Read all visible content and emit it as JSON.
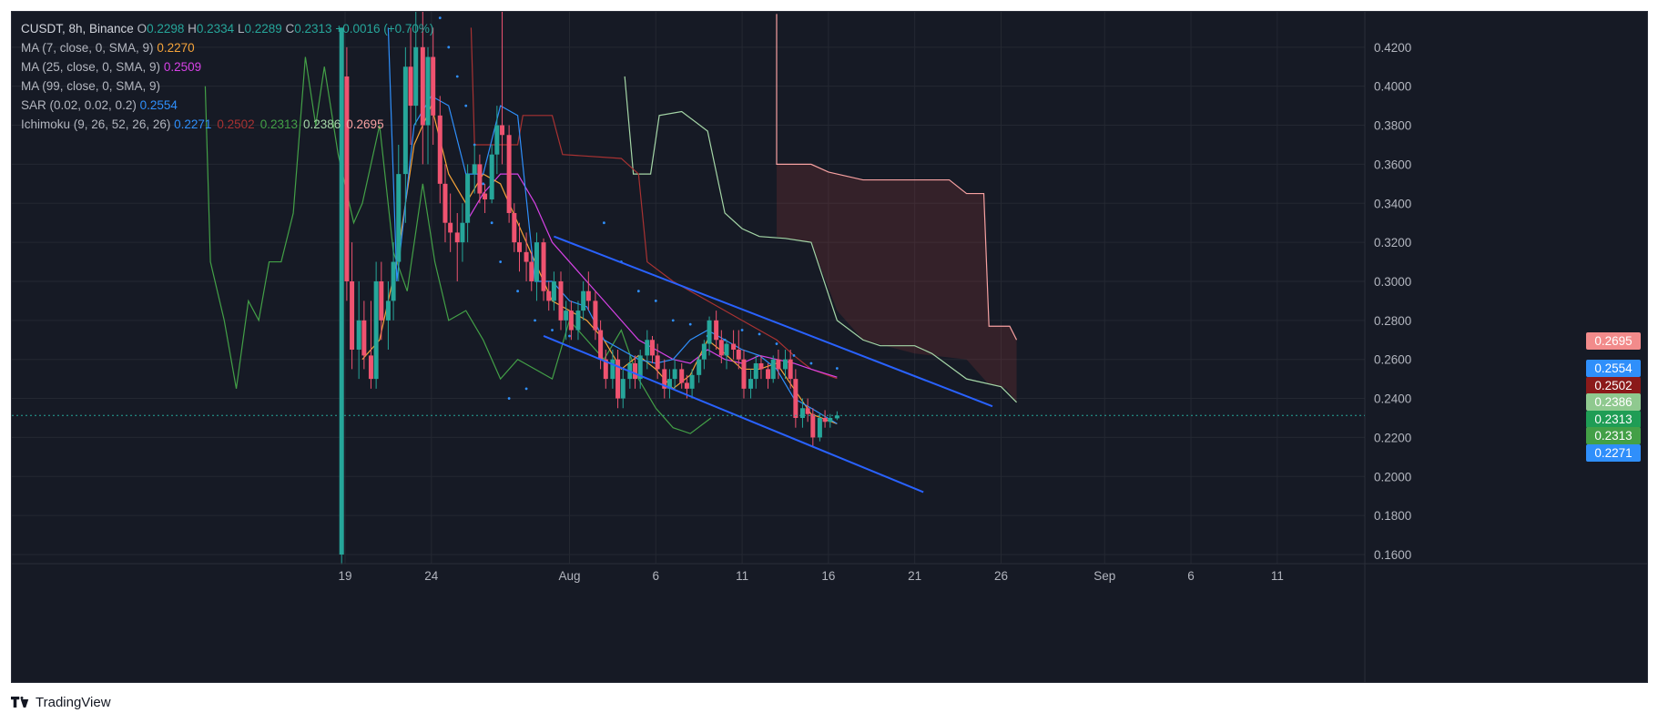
{
  "legend": {
    "symbol": "CUSDT, 8h, Binance",
    "ohlc": [
      {
        "k": "O",
        "v": "0.2298"
      },
      {
        "k": "H",
        "v": "0.2334"
      },
      {
        "k": "L",
        "v": "0.2289"
      },
      {
        "k": "C",
        "v": "0.2313"
      }
    ],
    "change": "+0.0016 (+0.70%)",
    "indicators": [
      {
        "label": "MA (7, close, 0, SMA, 9)",
        "values": [
          {
            "v": "0.2270",
            "color": "#f5a33a"
          }
        ]
      },
      {
        "label": "MA (25, close, 0, SMA, 9)",
        "values": [
          {
            "v": "0.2509",
            "color": "#d742e6"
          }
        ]
      },
      {
        "label": "MA (99, close, 0, SMA, 9)",
        "values": []
      },
      {
        "label": "SAR (0.02, 0.02, 0.2)",
        "values": [
          {
            "v": "0.2554",
            "color": "#2f8ffb"
          }
        ]
      },
      {
        "label": "Ichimoku (9, 26, 52, 26, 26)",
        "values": [
          {
            "v": "0.2271",
            "color": "#2f8ffb"
          },
          {
            "v": "0.2502",
            "color": "#a83232"
          },
          {
            "v": "0.2313",
            "color": "#43a047"
          },
          {
            "v": "0.2386",
            "color": "#a5d6a7"
          },
          {
            "v": "0.2695",
            "color": "#f7a1a1"
          }
        ]
      }
    ]
  },
  "price_tags": [
    {
      "v": "0.2695",
      "color": "#f28b8b",
      "price": 0.2695
    },
    {
      "v": "0.2554",
      "color": "#2f8ffb",
      "price": 0.2554
    },
    {
      "v": "0.2502",
      "color": "#8b1a1a",
      "price": 0.2502
    },
    {
      "v": "0.2386",
      "color": "#8fc98f",
      "price": 0.2386
    },
    {
      "v": "0.2313",
      "color": "#1f9d55",
      "price": 0.2313
    },
    {
      "v": "0.2313",
      "color": "#43a047",
      "price": 0.2313
    },
    {
      "v": "0.2271",
      "color": "#2f8ffb",
      "price": 0.2271
    }
  ],
  "footer": {
    "brand": "TradingView"
  },
  "chart_data": {
    "type": "candlestick",
    "title": "CUSDT, 8h, Binance",
    "ylim": [
      0.155,
      0.437
    ],
    "y_ticks": [
      0.16,
      0.18,
      0.2,
      0.22,
      0.24,
      0.26,
      0.28,
      0.3,
      0.32,
      0.34,
      0.36,
      0.38,
      0.4,
      0.42
    ],
    "x_tick_labels": [
      {
        "label": "19",
        "day": 19
      },
      {
        "label": "24",
        "day": 24
      },
      {
        "label": "Aug",
        "day": 32
      },
      {
        "label": "6",
        "day": 37
      },
      {
        "label": "11",
        "day": 42
      },
      {
        "label": "16",
        "day": 47
      },
      {
        "label": "21",
        "day": 52
      },
      {
        "label": "26",
        "day": 57
      },
      {
        "label": "Sep",
        "day": 63
      },
      {
        "label": "6",
        "day": 68
      },
      {
        "label": "11",
        "day": 73
      }
    ],
    "grid": true,
    "current_price": 0.2313,
    "candles": [
      {
        "d": 18.8,
        "o": 0.16,
        "h": 0.43,
        "l": 0.155,
        "c": 0.43
      },
      {
        "d": 19.1,
        "o": 0.405,
        "h": 0.42,
        "l": 0.29,
        "c": 0.3
      },
      {
        "d": 19.4,
        "o": 0.3,
        "h": 0.32,
        "l": 0.255,
        "c": 0.265
      },
      {
        "d": 19.8,
        "o": 0.265,
        "h": 0.3,
        "l": 0.25,
        "c": 0.28
      },
      {
        "d": 20.1,
        "o": 0.28,
        "h": 0.29,
        "l": 0.255,
        "c": 0.262
      },
      {
        "d": 20.5,
        "o": 0.262,
        "h": 0.29,
        "l": 0.245,
        "c": 0.25
      },
      {
        "d": 20.8,
        "o": 0.25,
        "h": 0.31,
        "l": 0.245,
        "c": 0.3
      },
      {
        "d": 21.1,
        "o": 0.3,
        "h": 0.31,
        "l": 0.27,
        "c": 0.28
      },
      {
        "d": 21.5,
        "o": 0.28,
        "h": 0.3,
        "l": 0.265,
        "c": 0.29
      },
      {
        "d": 21.8,
        "o": 0.29,
        "h": 0.32,
        "l": 0.28,
        "c": 0.31
      },
      {
        "d": 22.1,
        "o": 0.31,
        "h": 0.37,
        "l": 0.3,
        "c": 0.355
      },
      {
        "d": 22.5,
        "o": 0.355,
        "h": 0.42,
        "l": 0.33,
        "c": 0.41
      },
      {
        "d": 22.8,
        "o": 0.41,
        "h": 0.43,
        "l": 0.37,
        "c": 0.39
      },
      {
        "d": 23.1,
        "o": 0.39,
        "h": 0.44,
        "l": 0.38,
        "c": 0.42
      },
      {
        "d": 23.5,
        "o": 0.42,
        "h": 0.44,
        "l": 0.36,
        "c": 0.38
      },
      {
        "d": 23.8,
        "o": 0.38,
        "h": 0.42,
        "l": 0.36,
        "c": 0.415
      },
      {
        "d": 24.1,
        "o": 0.415,
        "h": 0.43,
        "l": 0.37,
        "c": 0.385
      },
      {
        "d": 24.5,
        "o": 0.385,
        "h": 0.395,
        "l": 0.34,
        "c": 0.35
      },
      {
        "d": 24.8,
        "o": 0.35,
        "h": 0.36,
        "l": 0.32,
        "c": 0.33
      },
      {
        "d": 25.1,
        "o": 0.33,
        "h": 0.345,
        "l": 0.315,
        "c": 0.325
      },
      {
        "d": 25.5,
        "o": 0.325,
        "h": 0.335,
        "l": 0.3,
        "c": 0.32
      },
      {
        "d": 25.8,
        "o": 0.32,
        "h": 0.34,
        "l": 0.31,
        "c": 0.33
      },
      {
        "d": 26.1,
        "o": 0.33,
        "h": 0.36,
        "l": 0.32,
        "c": 0.355
      },
      {
        "d": 26.5,
        "o": 0.355,
        "h": 0.37,
        "l": 0.345,
        "c": 0.36
      },
      {
        "d": 26.8,
        "o": 0.36,
        "h": 0.365,
        "l": 0.34,
        "c": 0.345
      },
      {
        "d": 27.1,
        "o": 0.345,
        "h": 0.35,
        "l": 0.335,
        "c": 0.342
      },
      {
        "d": 27.5,
        "o": 0.342,
        "h": 0.37,
        "l": 0.34,
        "c": 0.365
      },
      {
        "d": 27.8,
        "o": 0.365,
        "h": 0.39,
        "l": 0.355,
        "c": 0.38
      },
      {
        "d": 28.1,
        "o": 0.38,
        "h": 0.44,
        "l": 0.36,
        "c": 0.375
      },
      {
        "d": 28.5,
        "o": 0.375,
        "h": 0.38,
        "l": 0.33,
        "c": 0.335
      },
      {
        "d": 28.8,
        "o": 0.335,
        "h": 0.34,
        "l": 0.315,
        "c": 0.32
      },
      {
        "d": 29.1,
        "o": 0.32,
        "h": 0.33,
        "l": 0.305,
        "c": 0.315
      },
      {
        "d": 29.5,
        "o": 0.315,
        "h": 0.325,
        "l": 0.3,
        "c": 0.31
      },
      {
        "d": 29.8,
        "o": 0.31,
        "h": 0.315,
        "l": 0.295,
        "c": 0.3
      },
      {
        "d": 30.1,
        "o": 0.3,
        "h": 0.325,
        "l": 0.29,
        "c": 0.32
      },
      {
        "d": 30.5,
        "o": 0.32,
        "h": 0.322,
        "l": 0.29,
        "c": 0.295
      },
      {
        "d": 30.8,
        "o": 0.295,
        "h": 0.3,
        "l": 0.285,
        "c": 0.29
      },
      {
        "d": 31.1,
        "o": 0.29,
        "h": 0.305,
        "l": 0.285,
        "c": 0.3
      },
      {
        "d": 31.5,
        "o": 0.3,
        "h": 0.305,
        "l": 0.275,
        "c": 0.28
      },
      {
        "d": 31.8,
        "o": 0.28,
        "h": 0.29,
        "l": 0.27,
        "c": 0.285
      },
      {
        "d": 32.1,
        "o": 0.285,
        "h": 0.29,
        "l": 0.27,
        "c": 0.275
      },
      {
        "d": 32.5,
        "o": 0.275,
        "h": 0.29,
        "l": 0.27,
        "c": 0.285
      },
      {
        "d": 32.8,
        "o": 0.285,
        "h": 0.3,
        "l": 0.28,
        "c": 0.295
      },
      {
        "d": 33.1,
        "o": 0.295,
        "h": 0.305,
        "l": 0.285,
        "c": 0.29
      },
      {
        "d": 33.5,
        "o": 0.29,
        "h": 0.295,
        "l": 0.27,
        "c": 0.275
      },
      {
        "d": 33.8,
        "o": 0.275,
        "h": 0.28,
        "l": 0.255,
        "c": 0.26
      },
      {
        "d": 34.1,
        "o": 0.26,
        "h": 0.265,
        "l": 0.245,
        "c": 0.25
      },
      {
        "d": 34.5,
        "o": 0.25,
        "h": 0.265,
        "l": 0.245,
        "c": 0.26
      },
      {
        "d": 34.8,
        "o": 0.26,
        "h": 0.265,
        "l": 0.235,
        "c": 0.24
      },
      {
        "d": 35.1,
        "o": 0.24,
        "h": 0.255,
        "l": 0.235,
        "c": 0.25
      },
      {
        "d": 35.5,
        "o": 0.25,
        "h": 0.262,
        "l": 0.245,
        "c": 0.258
      },
      {
        "d": 35.8,
        "o": 0.258,
        "h": 0.262,
        "l": 0.245,
        "c": 0.25
      },
      {
        "d": 36.1,
        "o": 0.25,
        "h": 0.265,
        "l": 0.245,
        "c": 0.262
      },
      {
        "d": 36.5,
        "o": 0.262,
        "h": 0.275,
        "l": 0.255,
        "c": 0.27
      },
      {
        "d": 36.8,
        "o": 0.27,
        "h": 0.272,
        "l": 0.258,
        "c": 0.262
      },
      {
        "d": 37.1,
        "o": 0.262,
        "h": 0.268,
        "l": 0.25,
        "c": 0.255
      },
      {
        "d": 37.5,
        "o": 0.255,
        "h": 0.26,
        "l": 0.24,
        "c": 0.245
      },
      {
        "d": 37.8,
        "o": 0.245,
        "h": 0.255,
        "l": 0.24,
        "c": 0.25
      },
      {
        "d": 38.1,
        "o": 0.25,
        "h": 0.26,
        "l": 0.245,
        "c": 0.255
      },
      {
        "d": 38.5,
        "o": 0.255,
        "h": 0.258,
        "l": 0.245,
        "c": 0.248
      },
      {
        "d": 38.8,
        "o": 0.248,
        "h": 0.252,
        "l": 0.24,
        "c": 0.245
      },
      {
        "d": 39.1,
        "o": 0.245,
        "h": 0.255,
        "l": 0.24,
        "c": 0.252
      },
      {
        "d": 39.5,
        "o": 0.252,
        "h": 0.262,
        "l": 0.248,
        "c": 0.26
      },
      {
        "d": 39.8,
        "o": 0.26,
        "h": 0.27,
        "l": 0.255,
        "c": 0.268
      },
      {
        "d": 40.1,
        "o": 0.268,
        "h": 0.282,
        "l": 0.262,
        "c": 0.28
      },
      {
        "d": 40.5,
        "o": 0.28,
        "h": 0.285,
        "l": 0.265,
        "c": 0.27
      },
      {
        "d": 40.8,
        "o": 0.27,
        "h": 0.275,
        "l": 0.258,
        "c": 0.262
      },
      {
        "d": 41.1,
        "o": 0.262,
        "h": 0.27,
        "l": 0.255,
        "c": 0.268
      },
      {
        "d": 41.5,
        "o": 0.268,
        "h": 0.275,
        "l": 0.26,
        "c": 0.265
      },
      {
        "d": 41.8,
        "o": 0.265,
        "h": 0.275,
        "l": 0.255,
        "c": 0.26
      },
      {
        "d": 42.1,
        "o": 0.26,
        "h": 0.265,
        "l": 0.24,
        "c": 0.245
      },
      {
        "d": 42.5,
        "o": 0.245,
        "h": 0.255,
        "l": 0.24,
        "c": 0.25
      },
      {
        "d": 42.8,
        "o": 0.25,
        "h": 0.262,
        "l": 0.245,
        "c": 0.258
      },
      {
        "d": 43.1,
        "o": 0.258,
        "h": 0.262,
        "l": 0.25,
        "c": 0.255
      },
      {
        "d": 43.5,
        "o": 0.255,
        "h": 0.258,
        "l": 0.245,
        "c": 0.25
      },
      {
        "d": 43.8,
        "o": 0.25,
        "h": 0.262,
        "l": 0.248,
        "c": 0.26
      },
      {
        "d": 44.1,
        "o": 0.26,
        "h": 0.265,
        "l": 0.25,
        "c": 0.255
      },
      {
        "d": 44.5,
        "o": 0.255,
        "h": 0.265,
        "l": 0.25,
        "c": 0.26
      },
      {
        "d": 44.8,
        "o": 0.26,
        "h": 0.265,
        "l": 0.245,
        "c": 0.25
      },
      {
        "d": 45.1,
        "o": 0.25,
        "h": 0.255,
        "l": 0.225,
        "c": 0.23
      },
      {
        "d": 45.5,
        "o": 0.23,
        "h": 0.24,
        "l": 0.225,
        "c": 0.235
      },
      {
        "d": 45.8,
        "o": 0.235,
        "h": 0.24,
        "l": 0.228,
        "c": 0.232
      },
      {
        "d": 46.1,
        "o": 0.232,
        "h": 0.235,
        "l": 0.215,
        "c": 0.22
      },
      {
        "d": 46.5,
        "o": 0.22,
        "h": 0.232,
        "l": 0.218,
        "c": 0.23
      },
      {
        "d": 46.8,
        "o": 0.23,
        "h": 0.234,
        "l": 0.225,
        "c": 0.228
      },
      {
        "d": 47.1,
        "o": 0.228,
        "h": 0.232,
        "l": 0.225,
        "c": 0.23
      },
      {
        "d": 47.5,
        "o": 0.2298,
        "h": 0.2334,
        "l": 0.2289,
        "c": 0.2313
      }
    ],
    "channel": [
      {
        "from": {
          "d": 31.1,
          "p": 0.323
        },
        "to": {
          "d": 56.5,
          "p": 0.236
        }
      },
      {
        "from": {
          "d": 30.5,
          "p": 0.272
        },
        "to": {
          "d": 52.5,
          "p": 0.192
        }
      }
    ]
  }
}
